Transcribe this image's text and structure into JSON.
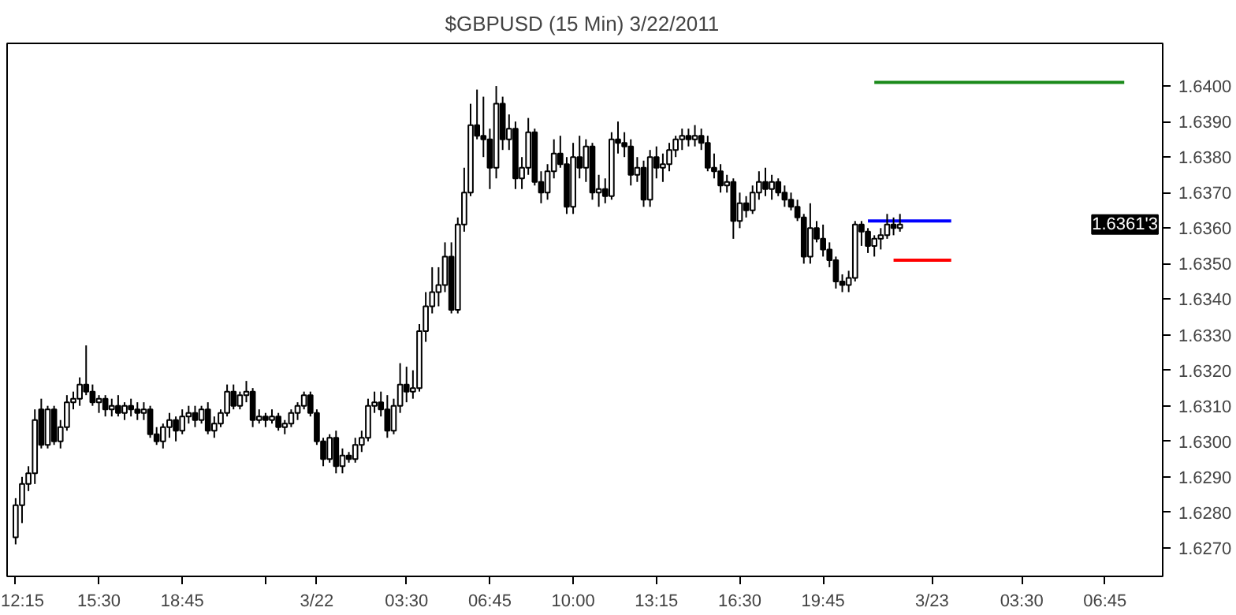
{
  "chart_data": {
    "type": "candlestick",
    "title": "$GBPUSD (15 Min)  3/22/2011",
    "x": [
      "2011-03-21T12:15",
      "2011-03-21T12:30",
      "2011-03-21T12:45",
      "2011-03-21T13:00",
      "2011-03-21T13:15",
      "2011-03-21T13:30",
      "2011-03-21T13:45",
      "2011-03-21T14:00",
      "2011-03-21T14:15",
      "2011-03-21T14:30",
      "2011-03-21T14:45",
      "2011-03-21T15:00",
      "2011-03-21T15:15",
      "2011-03-21T15:30",
      "2011-03-21T15:45",
      "2011-03-21T16:00",
      "2011-03-21T16:15",
      "2011-03-21T16:30",
      "2011-03-21T16:45",
      "2011-03-21T17:00",
      "2011-03-21T17:15",
      "2011-03-21T17:30",
      "2011-03-21T17:45",
      "2011-03-21T18:00",
      "2011-03-21T18:15",
      "2011-03-21T18:30",
      "2011-03-21T18:45",
      "2011-03-21T19:00",
      "2011-03-21T19:15",
      "2011-03-21T19:30",
      "2011-03-21T19:45",
      "2011-03-21T20:00",
      "2011-03-21T20:15",
      "2011-03-21T20:30",
      "2011-03-21T20:45",
      "2011-03-21T21:00",
      "2011-03-21T21:15",
      "2011-03-21T21:30",
      "2011-03-21T21:45",
      "2011-03-21T22:00",
      "2011-03-21T22:15",
      "2011-03-21T22:30",
      "2011-03-21T22:45",
      "2011-03-21T23:00",
      "2011-03-21T23:15",
      "2011-03-21T23:30",
      "2011-03-21T23:45",
      "2011-03-22T00:00",
      "2011-03-22T00:15",
      "2011-03-22T00:30",
      "2011-03-22T00:45",
      "2011-03-22T01:00",
      "2011-03-22T01:15",
      "2011-03-22T01:30",
      "2011-03-22T01:45",
      "2011-03-22T02:00",
      "2011-03-22T02:15",
      "2011-03-22T02:30",
      "2011-03-22T02:45",
      "2011-03-22T03:00",
      "2011-03-22T03:15",
      "2011-03-22T03:30",
      "2011-03-22T03:45",
      "2011-03-22T04:00",
      "2011-03-22T04:15",
      "2011-03-22T04:30",
      "2011-03-22T04:45",
      "2011-03-22T05:00",
      "2011-03-22T05:15",
      "2011-03-22T05:30",
      "2011-03-22T05:45",
      "2011-03-22T06:00",
      "2011-03-22T06:15",
      "2011-03-22T06:30",
      "2011-03-22T06:45",
      "2011-03-22T07:00",
      "2011-03-22T07:15",
      "2011-03-22T07:30",
      "2011-03-22T07:45",
      "2011-03-22T08:00",
      "2011-03-22T08:15",
      "2011-03-22T08:30",
      "2011-03-22T08:45",
      "2011-03-22T09:00",
      "2011-03-22T09:15",
      "2011-03-22T09:30",
      "2011-03-22T09:45",
      "2011-03-22T10:00",
      "2011-03-22T10:15",
      "2011-03-22T10:30",
      "2011-03-22T10:45",
      "2011-03-22T11:00",
      "2011-03-22T11:15",
      "2011-03-22T11:30",
      "2011-03-22T11:45",
      "2011-03-22T12:00",
      "2011-03-22T12:15",
      "2011-03-22T12:30",
      "2011-03-22T12:45",
      "2011-03-22T13:00",
      "2011-03-22T13:15",
      "2011-03-22T13:30",
      "2011-03-22T13:45",
      "2011-03-22T14:00",
      "2011-03-22T14:15",
      "2011-03-22T14:30",
      "2011-03-22T14:45",
      "2011-03-22T15:00",
      "2011-03-22T15:15",
      "2011-03-22T15:30",
      "2011-03-22T15:45",
      "2011-03-22T16:00",
      "2011-03-22T16:15",
      "2011-03-22T16:30",
      "2011-03-22T16:45",
      "2011-03-22T17:00",
      "2011-03-22T17:15",
      "2011-03-22T17:30",
      "2011-03-22T17:45",
      "2011-03-22T18:00",
      "2011-03-22T18:15",
      "2011-03-22T18:30",
      "2011-03-22T18:45",
      "2011-03-22T19:00",
      "2011-03-22T19:15",
      "2011-03-22T19:30",
      "2011-03-22T19:45",
      "2011-03-22T20:00",
      "2011-03-22T20:15",
      "2011-03-22T20:30",
      "2011-03-22T20:45",
      "2011-03-22T21:00",
      "2011-03-22T21:15",
      "2011-03-22T21:30",
      "2011-03-22T21:45",
      "2011-03-22T22:00",
      "2011-03-22T22:15",
      "2011-03-22T22:30",
      "2011-03-22T22:45"
    ],
    "ohlc": [
      [
        1.6273,
        1.6284,
        1.6271,
        1.6282
      ],
      [
        1.6282,
        1.629,
        1.6277,
        1.6288
      ],
      [
        1.6288,
        1.6293,
        1.6286,
        1.6291
      ],
      [
        1.6291,
        1.6309,
        1.6288,
        1.6306
      ],
      [
        1.6309,
        1.6312,
        1.6298,
        1.6299
      ],
      [
        1.6299,
        1.631,
        1.6298,
        1.6309
      ],
      [
        1.6309,
        1.631,
        1.6299,
        1.63
      ],
      [
        1.63,
        1.6306,
        1.6298,
        1.6304
      ],
      [
        1.6304,
        1.6313,
        1.6303,
        1.6311
      ],
      [
        1.6311,
        1.6314,
        1.6309,
        1.6312
      ],
      [
        1.6312,
        1.6318,
        1.631,
        1.6316
      ],
      [
        1.6316,
        1.6327,
        1.6313,
        1.6314
      ],
      [
        1.6314,
        1.6316,
        1.631,
        1.6311
      ],
      [
        1.6311,
        1.6313,
        1.6308,
        1.6312
      ],
      [
        1.6312,
        1.6313,
        1.6307,
        1.6309
      ],
      [
        1.6309,
        1.6312,
        1.6307,
        1.631
      ],
      [
        1.631,
        1.6313,
        1.6307,
        1.6308
      ],
      [
        1.6308,
        1.6311,
        1.6306,
        1.631
      ],
      [
        1.631,
        1.6312,
        1.6307,
        1.6309
      ],
      [
        1.6309,
        1.6311,
        1.6306,
        1.6308
      ],
      [
        1.6308,
        1.6311,
        1.6306,
        1.6309
      ],
      [
        1.6309,
        1.631,
        1.6301,
        1.6302
      ],
      [
        1.6302,
        1.6304,
        1.6299,
        1.63
      ],
      [
        1.63,
        1.6305,
        1.6298,
        1.6304
      ],
      [
        1.6304,
        1.6308,
        1.6301,
        1.6306
      ],
      [
        1.6306,
        1.6307,
        1.63,
        1.6303
      ],
      [
        1.6303,
        1.6309,
        1.6302,
        1.6307
      ],
      [
        1.6307,
        1.631,
        1.6305,
        1.6308
      ],
      [
        1.6308,
        1.631,
        1.6304,
        1.6306
      ],
      [
        1.6306,
        1.631,
        1.6305,
        1.6309
      ],
      [
        1.6309,
        1.6311,
        1.6302,
        1.6303
      ],
      [
        1.6303,
        1.6307,
        1.6301,
        1.6305
      ],
      [
        1.6305,
        1.6309,
        1.6304,
        1.6308
      ],
      [
        1.6308,
        1.6316,
        1.6307,
        1.6314
      ],
      [
        1.6314,
        1.6316,
        1.6309,
        1.631
      ],
      [
        1.631,
        1.6314,
        1.6309,
        1.6313
      ],
      [
        1.6313,
        1.6317,
        1.6311,
        1.6314
      ],
      [
        1.6314,
        1.6315,
        1.6304,
        1.6306
      ],
      [
        1.6306,
        1.6309,
        1.6305,
        1.6307
      ],
      [
        1.6307,
        1.6308,
        1.6304,
        1.6306
      ],
      [
        1.6306,
        1.6309,
        1.6305,
        1.6307
      ],
      [
        1.6307,
        1.6308,
        1.6303,
        1.6304
      ],
      [
        1.6304,
        1.6306,
        1.6302,
        1.6305
      ],
      [
        1.6305,
        1.6309,
        1.6304,
        1.6308
      ],
      [
        1.6308,
        1.6311,
        1.6306,
        1.631
      ],
      [
        1.631,
        1.6314,
        1.6309,
        1.6313
      ],
      [
        1.6313,
        1.6314,
        1.6307,
        1.6308
      ],
      [
        1.6308,
        1.6309,
        1.6299,
        1.63
      ],
      [
        1.63,
        1.6301,
        1.6293,
        1.6295
      ],
      [
        1.6295,
        1.6302,
        1.6294,
        1.6301
      ],
      [
        1.6301,
        1.6303,
        1.6291,
        1.6293
      ],
      [
        1.6293,
        1.6298,
        1.6291,
        1.6296
      ],
      [
        1.6296,
        1.6297,
        1.6294,
        1.6295
      ],
      [
        1.6295,
        1.6301,
        1.6294,
        1.6299
      ],
      [
        1.6299,
        1.6303,
        1.6297,
        1.6301
      ],
      [
        1.6301,
        1.6312,
        1.63,
        1.631
      ],
      [
        1.631,
        1.6314,
        1.6308,
        1.6311
      ],
      [
        1.6311,
        1.6314,
        1.6307,
        1.6309
      ],
      [
        1.6309,
        1.6313,
        1.6301,
        1.6303
      ],
      [
        1.6303,
        1.6312,
        1.6302,
        1.631
      ],
      [
        1.631,
        1.6322,
        1.6308,
        1.6316
      ],
      [
        1.6316,
        1.6321,
        1.6311,
        1.6314
      ],
      [
        1.6314,
        1.632,
        1.6312,
        1.6315
      ],
      [
        1.6315,
        1.6333,
        1.6314,
        1.6331
      ],
      [
        1.6331,
        1.6342,
        1.6328,
        1.6338
      ],
      [
        1.6338,
        1.6349,
        1.6336,
        1.6342
      ],
      [
        1.6342,
        1.6349,
        1.6338,
        1.6344
      ],
      [
        1.6344,
        1.6356,
        1.6342,
        1.6352
      ],
      [
        1.6352,
        1.6356,
        1.6336,
        1.6337
      ],
      [
        1.6337,
        1.6363,
        1.6336,
        1.6361
      ],
      [
        1.6361,
        1.6377,
        1.6359,
        1.637
      ],
      [
        1.637,
        1.6395,
        1.6369,
        1.6389
      ],
      [
        1.6389,
        1.6399,
        1.6385,
        1.6386
      ],
      [
        1.6386,
        1.6397,
        1.638,
        1.6385
      ],
      [
        1.6385,
        1.6388,
        1.6371,
        1.6377
      ],
      [
        1.6377,
        1.64,
        1.6374,
        1.6395
      ],
      [
        1.6395,
        1.6397,
        1.6382,
        1.6385
      ],
      [
        1.6385,
        1.6392,
        1.6382,
        1.6388
      ],
      [
        1.6388,
        1.639,
        1.6371,
        1.6374
      ],
      [
        1.6374,
        1.638,
        1.6371,
        1.6377
      ],
      [
        1.6377,
        1.6391,
        1.6375,
        1.6387
      ],
      [
        1.6387,
        1.6388,
        1.6372,
        1.6373
      ],
      [
        1.6373,
        1.6376,
        1.6367,
        1.637
      ],
      [
        1.637,
        1.6378,
        1.6368,
        1.6376
      ],
      [
        1.6376,
        1.6385,
        1.6374,
        1.6381
      ],
      [
        1.6381,
        1.6386,
        1.6377,
        1.6378
      ],
      [
        1.6378,
        1.638,
        1.6364,
        1.6366
      ],
      [
        1.6366,
        1.6384,
        1.6364,
        1.638
      ],
      [
        1.638,
        1.6386,
        1.6374,
        1.6377
      ],
      [
        1.6377,
        1.6385,
        1.6373,
        1.6383
      ],
      [
        1.6383,
        1.6384,
        1.6368,
        1.637
      ],
      [
        1.637,
        1.6375,
        1.6366,
        1.6371
      ],
      [
        1.6371,
        1.6374,
        1.6367,
        1.6369
      ],
      [
        1.6369,
        1.6387,
        1.6368,
        1.6385
      ],
      [
        1.6385,
        1.639,
        1.6381,
        1.6384
      ],
      [
        1.6384,
        1.6387,
        1.638,
        1.6383
      ],
      [
        1.6383,
        1.6385,
        1.6372,
        1.6375
      ],
      [
        1.6375,
        1.638,
        1.6373,
        1.6377
      ],
      [
        1.6377,
        1.6379,
        1.6366,
        1.6368
      ],
      [
        1.6368,
        1.6382,
        1.6366,
        1.638
      ],
      [
        1.638,
        1.6383,
        1.6374,
        1.6377
      ],
      [
        1.6377,
        1.6381,
        1.6373,
        1.6378
      ],
      [
        1.6378,
        1.6384,
        1.6376,
        1.6382
      ],
      [
        1.6382,
        1.6386,
        1.638,
        1.6385
      ],
      [
        1.6385,
        1.6388,
        1.6382,
        1.6386
      ],
      [
        1.6386,
        1.6388,
        1.6383,
        1.6385
      ],
      [
        1.6385,
        1.6389,
        1.6383,
        1.6386
      ],
      [
        1.6386,
        1.6388,
        1.6382,
        1.6384
      ],
      [
        1.6384,
        1.6386,
        1.6376,
        1.6377
      ],
      [
        1.6377,
        1.6381,
        1.6374,
        1.6376
      ],
      [
        1.6376,
        1.6378,
        1.637,
        1.6372
      ],
      [
        1.6372,
        1.6375,
        1.637,
        1.6373
      ],
      [
        1.6373,
        1.6374,
        1.6357,
        1.6362
      ],
      [
        1.6362,
        1.637,
        1.636,
        1.6367
      ],
      [
        1.6367,
        1.6369,
        1.6363,
        1.6365
      ],
      [
        1.6365,
        1.6372,
        1.6364,
        1.637
      ],
      [
        1.637,
        1.6376,
        1.6368,
        1.6373
      ],
      [
        1.6373,
        1.6377,
        1.6369,
        1.6371
      ],
      [
        1.6371,
        1.6375,
        1.6368,
        1.6373
      ],
      [
        1.6373,
        1.6374,
        1.6369,
        1.637
      ],
      [
        1.637,
        1.6372,
        1.6366,
        1.6368
      ],
      [
        1.6368,
        1.637,
        1.6365,
        1.6366
      ],
      [
        1.6366,
        1.6368,
        1.6362,
        1.6363
      ],
      [
        1.6363,
        1.6364,
        1.635,
        1.6352
      ],
      [
        1.6352,
        1.6367,
        1.635,
        1.636
      ],
      [
        1.636,
        1.6362,
        1.6356,
        1.6357
      ],
      [
        1.6357,
        1.6361,
        1.6352,
        1.6354
      ],
      [
        1.6354,
        1.6356,
        1.6349,
        1.6351
      ],
      [
        1.6351,
        1.6352,
        1.6343,
        1.6345
      ],
      [
        1.6345,
        1.6347,
        1.6342,
        1.6344
      ],
      [
        1.6344,
        1.6348,
        1.6342,
        1.6346
      ],
      [
        1.6346,
        1.6362,
        1.6345,
        1.6361
      ],
      [
        1.6361,
        1.6362,
        1.6355,
        1.6359
      ],
      [
        1.6359,
        1.636,
        1.6353,
        1.6355
      ],
      [
        1.6355,
        1.6358,
        1.6352,
        1.6357
      ],
      [
        1.6357,
        1.636,
        1.6354,
        1.6358
      ],
      [
        1.6358,
        1.6364,
        1.6357,
        1.6361
      ],
      [
        1.6361,
        1.6363,
        1.6358,
        1.636
      ],
      [
        1.636,
        1.6364,
        1.6359,
        1.6361
      ]
    ],
    "series": [
      {
        "type": "line",
        "color": "#1a8a1a",
        "x": [
          "2011-03-22T21:45",
          "2011-03-23T07:30"
        ],
        "values": [
          1.6401,
          1.6401
        ]
      },
      {
        "type": "line",
        "color": "#0000ff",
        "x": [
          "2011-03-22T21:30",
          "2011-03-23T00:45"
        ],
        "values": [
          1.6362,
          1.6362
        ]
      },
      {
        "type": "line",
        "color": "#ff0000",
        "x": [
          "2011-03-22T22:30",
          "2011-03-23T00:45"
        ],
        "values": [
          1.6351,
          1.6351
        ]
      }
    ],
    "xlim": [
      "2011-03-21T11:55",
      "2011-03-23T09:00"
    ],
    "xticks": [
      {
        "value": "2011-03-21T12:15",
        "label": "12:15"
      },
      {
        "value": "2011-03-21T15:30",
        "label": "15:30"
      },
      {
        "value": "2011-03-21T18:45",
        "label": "18:45"
      },
      {
        "value": "2011-03-21T22:00",
        "label": null
      },
      {
        "value": "2011-03-22T00:00",
        "label": "3/22"
      },
      {
        "value": "2011-03-22T03:30",
        "label": "03:30"
      },
      {
        "value": "2011-03-22T06:45",
        "label": "06:45"
      },
      {
        "value": "2011-03-22T10:00",
        "label": "10:00"
      },
      {
        "value": "2011-03-22T13:15",
        "label": "13:15"
      },
      {
        "value": "2011-03-22T16:30",
        "label": "16:30"
      },
      {
        "value": "2011-03-22T19:45",
        "label": "19:45"
      },
      {
        "value": "2011-03-23T00:00",
        "label": "3/23"
      },
      {
        "value": "2011-03-23T03:30",
        "label": "03:30"
      },
      {
        "value": "2011-03-23T06:45",
        "label": "06:45"
      }
    ],
    "ylim": [
      1.6262,
      1.6412
    ],
    "yticks": [
      {
        "value": 1.627,
        "label": "1.6270"
      },
      {
        "value": 1.628,
        "label": "1.6280"
      },
      {
        "value": 1.629,
        "label": "1.6290"
      },
      {
        "value": 1.63,
        "label": "1.6300"
      },
      {
        "value": 1.631,
        "label": "1.6310"
      },
      {
        "value": 1.632,
        "label": "1.6320"
      },
      {
        "value": 1.633,
        "label": "1.6330"
      },
      {
        "value": 1.634,
        "label": "1.6340"
      },
      {
        "value": 1.635,
        "label": "1.6350"
      },
      {
        "value": 1.636,
        "label": "1.6360"
      },
      {
        "value": 1.637,
        "label": "1.6370"
      },
      {
        "value": 1.638,
        "label": "1.6380"
      },
      {
        "value": 1.639,
        "label": "1.6390"
      },
      {
        "value": 1.64,
        "label": "1.6400"
      }
    ],
    "annotations": [
      "1.6361'3"
    ],
    "grid": false
  }
}
